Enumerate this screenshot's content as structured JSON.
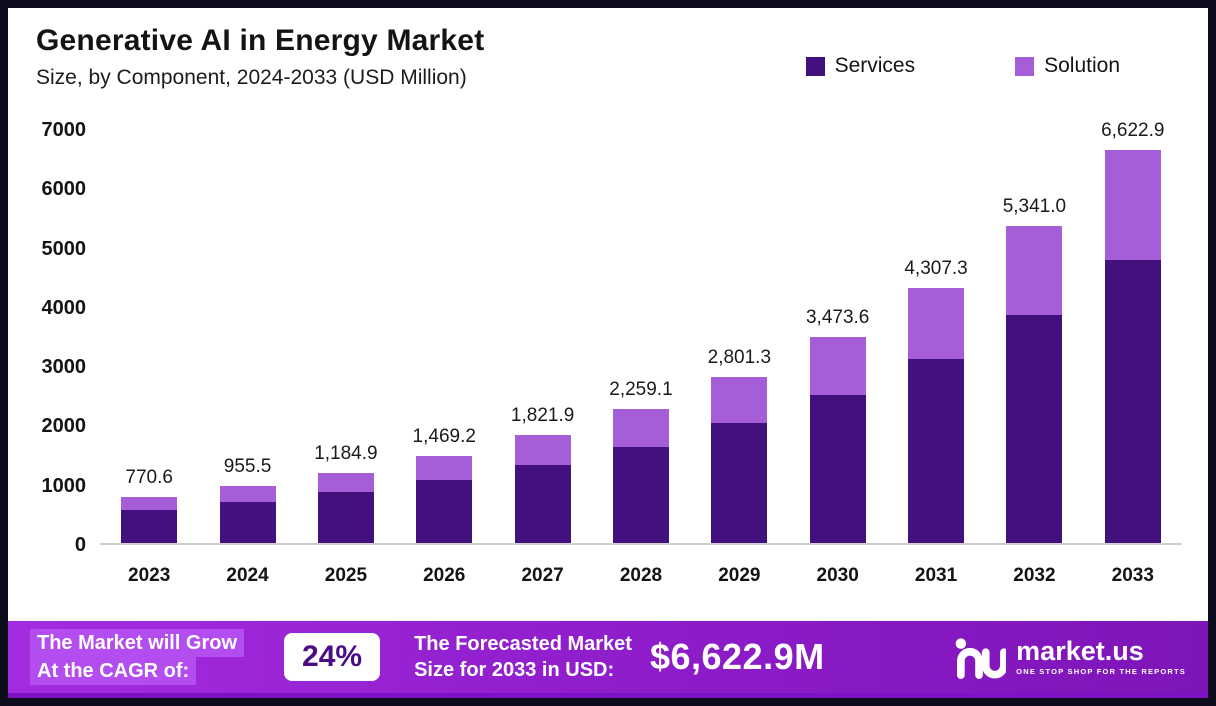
{
  "title": "Generative AI in Energy Market",
  "subtitle": "Size, by Component, 2024-2033 (USD Million)",
  "legend": {
    "services_label": "Services",
    "solution_label": "Solution"
  },
  "colors": {
    "services": "#43117e",
    "solution": "#a55dd8",
    "border": "#0d0c1d",
    "footer_gradient_start": "#a42ce0",
    "footer_gradient_end": "#7e15b8",
    "highlight_chip": "#b44def",
    "badge_text": "#4a0d85"
  },
  "chart_data": {
    "type": "bar",
    "stacked": true,
    "title": "Generative AI in Energy Market",
    "subtitle": "Size, by Component, 2024-2033 (USD Million)",
    "xlabel": "",
    "ylabel": "USD Million",
    "ylim": [
      0,
      7000
    ],
    "yticks": [
      "7000",
      "6000",
      "5000",
      "4000",
      "3000",
      "2000",
      "1000",
      "0"
    ],
    "ytick_values": [
      7000,
      6000,
      5000,
      4000,
      3000,
      2000,
      1000,
      0
    ],
    "grid": false,
    "legend_position": "top-right",
    "categories": [
      "2023",
      "2024",
      "2025",
      "2026",
      "2027",
      "2028",
      "2029",
      "2030",
      "2031",
      "2032",
      "2033"
    ],
    "series": [
      {
        "name": "Services",
        "color": "#43117e",
        "values": [
          554.8,
          688.0,
          853.1,
          1057.8,
          1311.8,
          1626.6,
          2016.9,
          2501.0,
          3101.3,
          3845.5,
          4768.5
        ]
      },
      {
        "name": "Solution",
        "color": "#a55dd8",
        "values": [
          215.8,
          267.5,
          331.8,
          411.4,
          510.1,
          632.5,
          784.4,
          972.6,
          1206.0,
          1495.5,
          1854.4
        ]
      }
    ],
    "totals": [
      770.6,
      955.5,
      1184.9,
      1469.2,
      1821.9,
      2259.1,
      2801.3,
      3473.6,
      4307.3,
      5341.0,
      6622.9
    ],
    "total_labels": [
      "770.6",
      "955.5",
      "1,184.9",
      "1,469.2",
      "1,821.9",
      "2,259.1",
      "2,801.3",
      "3,473.6",
      "4,307.3",
      "5,341.0",
      "6,622.9"
    ]
  },
  "footer": {
    "cagr_line1": "The Market will Grow",
    "cagr_line2": "At the CAGR of:",
    "cagr_value": "24%",
    "forecast_line1": "The Forecasted Market",
    "forecast_line2": "Size for 2033 in USD:",
    "forecast_value": "$6,622.9M",
    "brand_name": "market.us",
    "brand_tagline": "ONE STOP SHOP FOR THE REPORTS"
  }
}
